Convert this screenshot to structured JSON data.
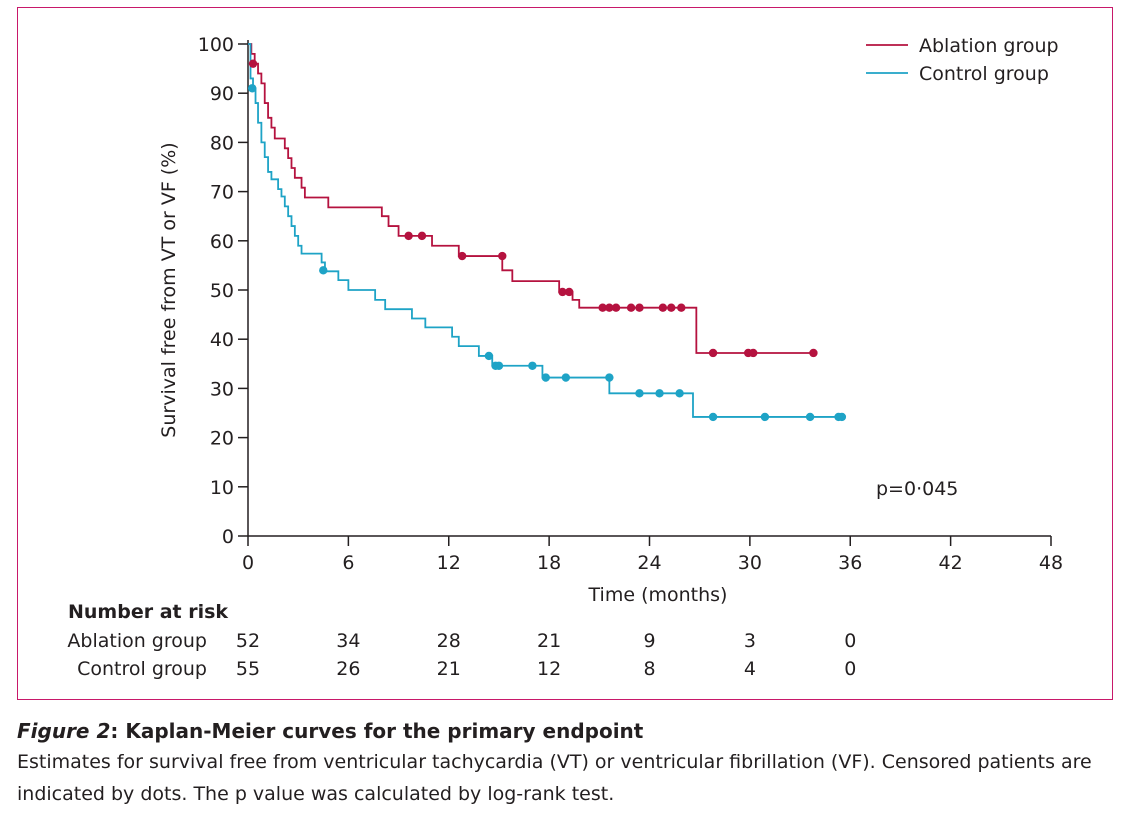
{
  "chart_data": {
    "type": "line",
    "subtype": "kaplan-meier step",
    "ylabel": "Survival free from VT or VF (%)",
    "xlabel": "Time (months)",
    "ylim": [
      0,
      100
    ],
    "xlim": [
      0,
      48
    ],
    "yticks": [
      0,
      10,
      20,
      30,
      40,
      50,
      60,
      70,
      80,
      90,
      100
    ],
    "xticks": [
      0,
      6,
      12,
      18,
      24,
      30,
      36,
      42,
      48
    ],
    "legend_position": "top-right",
    "annotation": "p=0·045",
    "series": [
      {
        "name": "Ablation group",
        "color": "#b5123f",
        "steps": [
          [
            0,
            100
          ],
          [
            0.2,
            98
          ],
          [
            0.4,
            96
          ],
          [
            0.6,
            94
          ],
          [
            0.8,
            92
          ],
          [
            1.0,
            88
          ],
          [
            1.2,
            85
          ],
          [
            1.4,
            83
          ],
          [
            1.6,
            80.8
          ],
          [
            2.2,
            78.8
          ],
          [
            2.4,
            76.8
          ],
          [
            2.6,
            74.8
          ],
          [
            2.8,
            72.8
          ],
          [
            3.2,
            70.8
          ],
          [
            3.4,
            68.8
          ],
          [
            4.8,
            66.8
          ],
          [
            8.0,
            65.0
          ],
          [
            8.4,
            63.0
          ],
          [
            9.0,
            61.0
          ],
          [
            11.0,
            59.0
          ],
          [
            12.6,
            56.9
          ],
          [
            15.2,
            54.0
          ],
          [
            15.8,
            51.8
          ],
          [
            18.6,
            49.6
          ],
          [
            19.4,
            48.0
          ],
          [
            19.8,
            46.4
          ],
          [
            26.8,
            37.2
          ],
          [
            34.0,
            37.2
          ]
        ],
        "censored": [
          [
            0.3,
            96
          ],
          [
            9.6,
            61
          ],
          [
            10.4,
            61
          ],
          [
            12.8,
            56.9
          ],
          [
            15.2,
            56.9
          ],
          [
            18.8,
            49.6
          ],
          [
            19.2,
            49.6
          ],
          [
            21.2,
            46.4
          ],
          [
            21.6,
            46.4
          ],
          [
            22.0,
            46.4
          ],
          [
            22.9,
            46.4
          ],
          [
            23.4,
            46.4
          ],
          [
            24.8,
            46.4
          ],
          [
            25.3,
            46.4
          ],
          [
            25.9,
            46.4
          ],
          [
            27.8,
            37.2
          ],
          [
            29.9,
            37.2
          ],
          [
            30.2,
            37.2
          ],
          [
            33.8,
            37.2
          ]
        ]
      },
      {
        "name": "Control group",
        "color": "#1ea3c6",
        "steps": [
          [
            0,
            100
          ],
          [
            0.15,
            93
          ],
          [
            0.3,
            91
          ],
          [
            0.45,
            88
          ],
          [
            0.6,
            84
          ],
          [
            0.8,
            80
          ],
          [
            1.0,
            77
          ],
          [
            1.2,
            74
          ],
          [
            1.4,
            72.5
          ],
          [
            1.8,
            70.5
          ],
          [
            2.0,
            69
          ],
          [
            2.2,
            67
          ],
          [
            2.4,
            65
          ],
          [
            2.6,
            63
          ],
          [
            2.8,
            61
          ],
          [
            3.0,
            59
          ],
          [
            3.2,
            57.4
          ],
          [
            4.4,
            55.6
          ],
          [
            4.6,
            53.8
          ],
          [
            5.4,
            52
          ],
          [
            6.0,
            50
          ],
          [
            7.6,
            48
          ],
          [
            8.2,
            46.1
          ],
          [
            9.8,
            44.2
          ],
          [
            10.6,
            42.4
          ],
          [
            12.2,
            40.5
          ],
          [
            12.6,
            38.6
          ],
          [
            13.8,
            36.6
          ],
          [
            14.6,
            34.6
          ],
          [
            17.6,
            32.2
          ],
          [
            21.6,
            29.0
          ],
          [
            26.6,
            24.2
          ],
          [
            35.4,
            24.2
          ]
        ],
        "censored": [
          [
            0.25,
            91
          ],
          [
            4.5,
            54
          ],
          [
            14.4,
            36.6
          ],
          [
            14.8,
            34.6
          ],
          [
            15.0,
            34.6
          ],
          [
            17.0,
            34.6
          ],
          [
            17.8,
            32.2
          ],
          [
            19.0,
            32.2
          ],
          [
            21.6,
            32.2
          ],
          [
            23.4,
            29.0
          ],
          [
            24.6,
            29.0
          ],
          [
            25.8,
            29.0
          ],
          [
            27.8,
            24.2
          ],
          [
            30.9,
            24.2
          ],
          [
            33.6,
            24.2
          ],
          [
            35.3,
            24.2
          ],
          [
            35.5,
            24.2
          ]
        ]
      }
    ],
    "number_at_risk": {
      "title": "Number at risk",
      "times": [
        0,
        6,
        12,
        18,
        24,
        30,
        36
      ],
      "rows": [
        {
          "label": "Ablation group",
          "values": [
            "52",
            "34",
            "28",
            "21",
            "9",
            "3",
            "0"
          ]
        },
        {
          "label": "Control group",
          "values": [
            "55",
            "26",
            "21",
            "12",
            "8",
            "4",
            "0"
          ]
        }
      ]
    }
  },
  "caption": {
    "figure_number": "Figure 2",
    "title": ": Kaplan-Meier curves for the primary endpoint",
    "body": "Estimates for survival free from ventricular tachycardia (VT) or ventricular fibrillation (VF). Censored patients are indicated by dots. The p value was calculated by log-rank test."
  },
  "colors": {
    "frame": "#c8186a",
    "ablation": "#b5123f",
    "control": "#1ea3c6",
    "text": "#231f20"
  }
}
